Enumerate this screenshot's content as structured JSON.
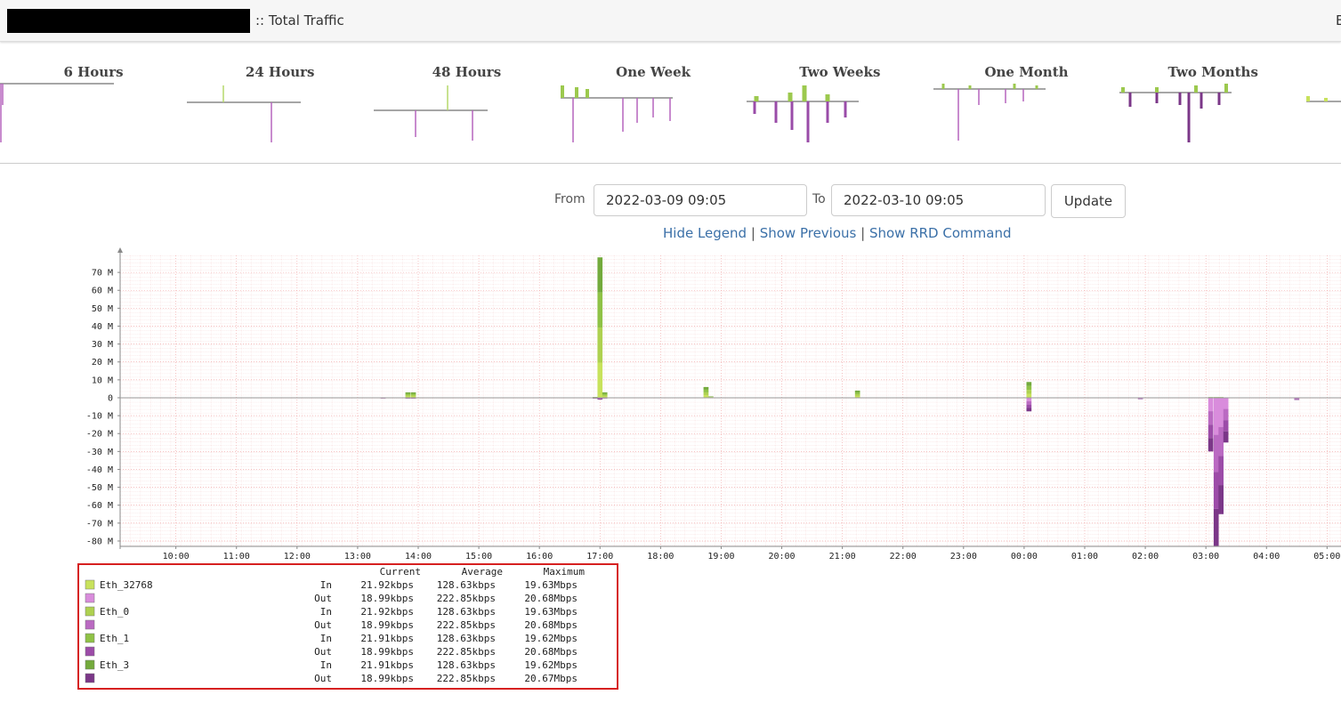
{
  "header": {
    "title": ":: Total Traffic",
    "truncated": "E"
  },
  "thumbnails": [
    "6 Hours",
    "24 Hours",
    "48 Hours",
    "One Week",
    "Two Weeks",
    "One Month",
    "Two Months"
  ],
  "form": {
    "from_label": "From",
    "from_value": "2022-03-09 09:05",
    "to_label": "To",
    "to_value": "2022-03-10 09:05",
    "button": "Update"
  },
  "links": [
    "Hide Legend",
    "Show Previous",
    "Show RRD Command"
  ],
  "link_separator": "|",
  "chart_data": {
    "type": "stacked-bar",
    "x": [
      13.42,
      13.83,
      13.92,
      16.92,
      17.0,
      17.08,
      18.75,
      18.83,
      21.25,
      24.08,
      25.92,
      27.08,
      27.17,
      27.25,
      27.33,
      28.5
    ],
    "xlim": [
      9.08,
      29.23
    ],
    "xticks": [
      {
        "value": 10,
        "label": "10:00"
      },
      {
        "value": 11,
        "label": "11:00"
      },
      {
        "value": 12,
        "label": "12:00"
      },
      {
        "value": 13,
        "label": "13:00"
      },
      {
        "value": 14,
        "label": "14:00"
      },
      {
        "value": 15,
        "label": "15:00"
      },
      {
        "value": 16,
        "label": "16:00"
      },
      {
        "value": 17,
        "label": "17:00"
      },
      {
        "value": 18,
        "label": "18:00"
      },
      {
        "value": 19,
        "label": "19:00"
      },
      {
        "value": 20,
        "label": "20:00"
      },
      {
        "value": 21,
        "label": "21:00"
      },
      {
        "value": 22,
        "label": "22:00"
      },
      {
        "value": 23,
        "label": "23:00"
      },
      {
        "value": 24,
        "label": "00:00"
      },
      {
        "value": 25,
        "label": "01:00"
      },
      {
        "value": 26,
        "label": "02:00"
      },
      {
        "value": 27,
        "label": "03:00"
      },
      {
        "value": 28,
        "label": "04:00"
      },
      {
        "value": 29,
        "label": "05:00"
      }
    ],
    "ylim": [
      -83,
      79.5
    ],
    "yticks": [
      {
        "value": 70,
        "label": "70 M"
      },
      {
        "value": 60,
        "label": "60 M"
      },
      {
        "value": 50,
        "label": "50 M"
      },
      {
        "value": 40,
        "label": "40 M"
      },
      {
        "value": 30,
        "label": "30 M"
      },
      {
        "value": 20,
        "label": "20 M"
      },
      {
        "value": 10,
        "label": "10 M"
      },
      0,
      {
        "value": -10,
        "label": "-10 M"
      },
      {
        "value": -20,
        "label": "-20 M"
      },
      {
        "value": -30,
        "label": "-30 M"
      },
      {
        "value": -40,
        "label": "-40 M"
      },
      {
        "value": -50,
        "label": "-50 M"
      },
      {
        "value": -60,
        "label": "-60 M"
      },
      {
        "value": -70,
        "label": "-70 M"
      },
      {
        "value": -80,
        "label": "-80 M"
      }
    ],
    "grid": true,
    "legend_headers": [
      "Current",
      "Average",
      "Maximum"
    ],
    "series": [
      {
        "name": "Eth_32768",
        "direction": "In",
        "color": "#c8e25c",
        "current": "21.92kbps",
        "average": "128.63kbps",
        "maximum": "19.63Mbps",
        "values": [
          0,
          0.75,
          0.75,
          0.12,
          19.6,
          0.75,
          1.5,
          0.2,
          1,
          2.2,
          0,
          0.1,
          0.1,
          0.1,
          0,
          0
        ]
      },
      {
        "direction": "Out",
        "color": "#d98cdc",
        "current": "18.99kbps",
        "average": "222.85kbps",
        "maximum": "20.68Mbps",
        "values": [
          -0.1,
          -0.12,
          -0.12,
          -0.12,
          -0.25,
          -0.1,
          0,
          0,
          0,
          -1.9,
          -0.2,
          -7.5,
          -20.68,
          -16.25,
          -6.25,
          -0.3
        ]
      },
      {
        "name": "Eth_0",
        "direction": "In",
        "color": "#aed150",
        "current": "21.92kbps",
        "average": "128.63kbps",
        "maximum": "19.63Mbps",
        "values": [
          0,
          0.75,
          0.75,
          0.12,
          19.6,
          0.75,
          1.5,
          0.2,
          1,
          2.2,
          0,
          0.1,
          0.1,
          0.1,
          0,
          0
        ]
      },
      {
        "direction": "Out",
        "color": "#ba6ac2",
        "current": "18.99kbps",
        "average": "222.85kbps",
        "maximum": "20.68Mbps",
        "values": [
          -0.1,
          -0.12,
          -0.12,
          -0.12,
          -0.25,
          -0.1,
          0,
          0,
          0,
          -1.9,
          -0.2,
          -7.5,
          -20.68,
          -16.25,
          -6.25,
          -0.3
        ]
      },
      {
        "name": "Eth_1",
        "direction": "In",
        "color": "#8fc246",
        "current": "21.91kbps",
        "average": "128.63kbps",
        "maximum": "19.62Mbps",
        "values": [
          0,
          0.75,
          0.75,
          0.12,
          19.6,
          0.75,
          1.5,
          0.2,
          1,
          2.2,
          0,
          0.1,
          0.1,
          0.1,
          0,
          0
        ]
      },
      {
        "direction": "Out",
        "color": "#9c4ca8",
        "current": "18.99kbps",
        "average": "222.85kbps",
        "maximum": "20.68Mbps",
        "values": [
          -0.1,
          -0.12,
          -0.12,
          -0.12,
          -0.25,
          -0.1,
          0,
          0,
          0,
          -1.9,
          -0.2,
          -7.5,
          -20.68,
          -16.25,
          -6.25,
          -0.3
        ]
      },
      {
        "name": "Eth_3",
        "direction": "In",
        "color": "#73aa3c",
        "current": "21.91kbps",
        "average": "128.63kbps",
        "maximum": "19.62Mbps",
        "values": [
          0,
          0.75,
          0.75,
          0.12,
          19.6,
          0.75,
          1.5,
          0.2,
          1,
          2.2,
          0,
          0.1,
          0.1,
          0.1,
          0,
          0
        ]
      },
      {
        "direction": "Out",
        "color": "#7b3788",
        "current": "18.99kbps",
        "average": "222.85kbps",
        "maximum": "20.67Mbps",
        "values": [
          -0.1,
          -0.12,
          -0.12,
          -0.12,
          -0.25,
          -0.1,
          0,
          0,
          0,
          -1.9,
          -0.2,
          -7.5,
          -20.68,
          -16.25,
          -6.25,
          -0.3
        ]
      }
    ]
  }
}
